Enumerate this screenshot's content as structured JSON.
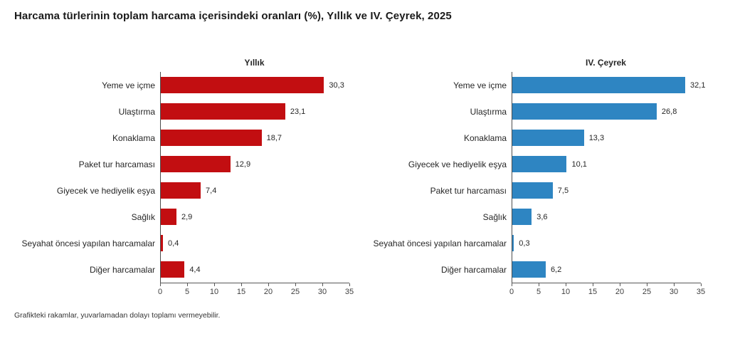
{
  "title": "Harcama türlerinin toplam harcama içerisindeki oranları (%), Yıllık ve IV. Çeyrek, 2025",
  "footnote": "Grafikteki rakamlar, yuvarlamadan dolayı toplamı vermeyebilir.",
  "colors": {
    "annual_bar": "#C20E11",
    "quarter_bar": "#2E85C2",
    "axis_line": "#595959",
    "text": "#262626"
  },
  "chart_data": [
    {
      "type": "bar",
      "orientation": "horizontal",
      "title": "Yıllık",
      "bar_color": "#C20E11",
      "categories": [
        "Yeme ve içme",
        "Ulaştırma",
        "Konaklama",
        "Paket tur harcaması",
        "Giyecek ve hediyelik eşya",
        "Sağlık",
        "Seyahat öncesi yapılan harcamalar",
        "Diğer harcamalar"
      ],
      "values": [
        30.3,
        23.1,
        18.7,
        12.9,
        7.4,
        2.9,
        0.4,
        4.4
      ],
      "value_labels": [
        "30,3",
        "23,1",
        "18,7",
        "12,9",
        "7,4",
        "2,9",
        "0,4",
        "4,4"
      ],
      "xlim": [
        0,
        35
      ],
      "x_ticks": [
        0,
        5,
        10,
        15,
        20,
        25,
        30,
        35
      ],
      "grid": false,
      "legend": false
    },
    {
      "type": "bar",
      "orientation": "horizontal",
      "title": "IV. Çeyrek",
      "bar_color": "#2E85C2",
      "categories": [
        "Yeme ve içme",
        "Ulaştırma",
        "Konaklama",
        "Giyecek ve hediyelik eşya",
        "Paket tur harcaması",
        "Sağlık",
        "Seyahat öncesi yapılan harcamalar",
        "Diğer harcamalar"
      ],
      "values": [
        32.1,
        26.8,
        13.3,
        10.1,
        7.5,
        3.6,
        0.3,
        6.2
      ],
      "value_labels": [
        "32,1",
        "26,8",
        "13,3",
        "10,1",
        "7,5",
        "3,6",
        "0,3",
        "6,2"
      ],
      "xlim": [
        0,
        35
      ],
      "x_ticks": [
        0,
        5,
        10,
        15,
        20,
        25,
        30,
        35
      ],
      "grid": false,
      "legend": false
    }
  ]
}
